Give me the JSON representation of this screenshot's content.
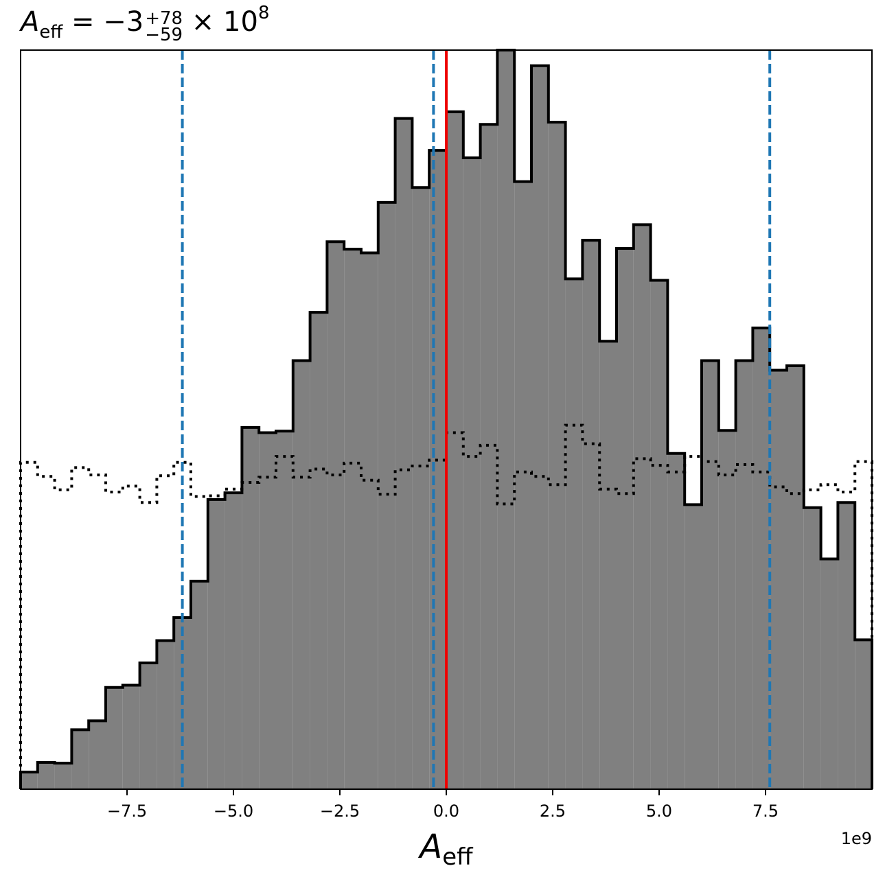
{
  "chart_data": {
    "type": "histogram",
    "title": {
      "symbol": "A",
      "symbol_sub": "eff",
      "equals": " = −3",
      "err_plus": "+78",
      "err_minus": "−59",
      "times": " × 10",
      "exponent": "8"
    },
    "xlabel": {
      "symbol": "A",
      "sub": "eff"
    },
    "x_offset_label": "1e9",
    "xlim": [
      -10.0,
      10.0
    ],
    "ylim": [
      0,
      9.95
    ],
    "x_unit_scale": 1000000000.0,
    "xticks": [
      {
        "value": -7.5,
        "label": "−7.5"
      },
      {
        "value": -5.0,
        "label": "−5.0"
      },
      {
        "value": -2.5,
        "label": "−2.5"
      },
      {
        "value": 0.0,
        "label": "0.0"
      },
      {
        "value": 2.5,
        "label": "2.5"
      },
      {
        "value": 5.0,
        "label": "5.0"
      },
      {
        "value": 7.5,
        "label": "7.5"
      }
    ],
    "bin_edges": [
      -10.0,
      -9.6,
      -9.2,
      -8.8,
      -8.4,
      -8.0,
      -7.6,
      -7.2,
      -6.8,
      -6.4,
      -6.0,
      -5.6,
      -5.2,
      -4.8,
      -4.4,
      -4.0,
      -3.6,
      -3.2,
      -2.8,
      -2.4,
      -2.0,
      -1.6,
      -1.2,
      -0.8,
      -0.4,
      0.0,
      0.4,
      0.8,
      1.2,
      1.6,
      2.0,
      2.4,
      2.8,
      3.2,
      3.6,
      4.0,
      4.4,
      4.8,
      5.2,
      5.6,
      6.0,
      6.4,
      6.8,
      7.2,
      7.6,
      8.0,
      8.4,
      8.8,
      9.2,
      9.6,
      10.0
    ],
    "series": [
      {
        "kind": "posterior",
        "style": "filled-step",
        "fill": "#808080",
        "edge": "#000000",
        "values": [
          0.23,
          0.36,
          0.35,
          0.8,
          0.92,
          1.37,
          1.4,
          1.7,
          2.0,
          2.31,
          2.8,
          3.9,
          3.99,
          4.87,
          4.8,
          4.82,
          5.77,
          6.42,
          7.37,
          7.27,
          7.22,
          7.9,
          9.03,
          8.1,
          8.6,
          9.12,
          8.5,
          8.95,
          9.95,
          8.18,
          9.74,
          8.98,
          6.87,
          7.39,
          6.03,
          7.28,
          7.6,
          6.85,
          4.52,
          3.83,
          5.77,
          4.83,
          5.77,
          6.21,
          5.64,
          5.7,
          3.79,
          3.1,
          3.86,
          2.01
        ]
      },
      {
        "kind": "prior",
        "style": "dotted-step",
        "edge": "#000000",
        "values": [
          4.4,
          4.21,
          4.03,
          4.33,
          4.23,
          4.0,
          4.08,
          3.86,
          4.22,
          4.4,
          3.94,
          3.95,
          4.04,
          4.13,
          4.2,
          4.48,
          4.2,
          4.31,
          4.23,
          4.39,
          4.16,
          3.97,
          4.3,
          4.35,
          4.43,
          4.8,
          4.48,
          4.63,
          3.84,
          4.27,
          4.21,
          4.1,
          4.9,
          4.65,
          4.04,
          3.98,
          4.45,
          4.36,
          4.27,
          4.48,
          4.41,
          4.23,
          4.37,
          4.27,
          4.07,
          3.98,
          4.03,
          4.1,
          4.0,
          4.41
        ]
      }
    ],
    "vlines": [
      {
        "x": -6.2,
        "color": "#1f77b4",
        "style": "dashed"
      },
      {
        "x": -0.3,
        "color": "#1f77b4",
        "style": "dashed"
      },
      {
        "x": 7.6,
        "color": "#1f77b4",
        "style": "dashed"
      },
      {
        "x": 0.0,
        "color": "#ee0000",
        "style": "solid"
      }
    ]
  }
}
